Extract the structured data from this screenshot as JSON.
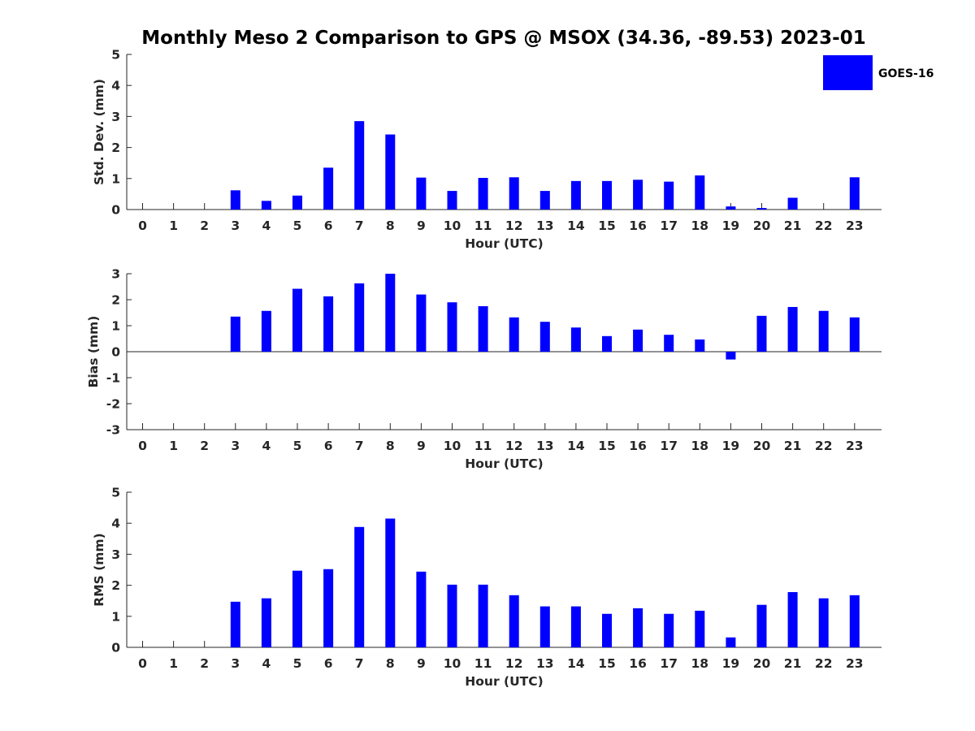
{
  "title": "Monthly Meso 2 Comparison to GPS @ MSOX (34.36, -89.53) 2023-01",
  "legend": {
    "label": "GOES-16",
    "color": "#0000ff"
  },
  "colors": {
    "bar": "#0000ff",
    "axis": "#262626"
  },
  "chart_data": [
    {
      "type": "bar",
      "xlabel": "Hour (UTC)",
      "ylabel": "Std. Dev. (mm)",
      "categories": [
        "0",
        "1",
        "2",
        "3",
        "4",
        "5",
        "6",
        "7",
        "8",
        "9",
        "10",
        "11",
        "12",
        "13",
        "14",
        "15",
        "16",
        "17",
        "18",
        "19",
        "20",
        "21",
        "22",
        "23"
      ],
      "values": [
        0,
        0,
        0,
        0.62,
        0.28,
        0.45,
        1.35,
        2.85,
        2.42,
        1.03,
        0.6,
        1.02,
        1.04,
        0.6,
        0.92,
        0.92,
        0.96,
        0.9,
        1.1,
        0.1,
        0.05,
        0.38,
        0,
        1.04
      ],
      "ylim": [
        0,
        5
      ],
      "yticks": [
        "0",
        "1",
        "2",
        "3",
        "4",
        "5"
      ],
      "legend": "top-right",
      "grid": false
    },
    {
      "type": "bar",
      "xlabel": "Hour (UTC)",
      "ylabel": "Bias (mm)",
      "categories": [
        "0",
        "1",
        "2",
        "3",
        "4",
        "5",
        "6",
        "7",
        "8",
        "9",
        "10",
        "11",
        "12",
        "13",
        "14",
        "15",
        "16",
        "17",
        "18",
        "19",
        "20",
        "21",
        "22",
        "23"
      ],
      "values": [
        0,
        0,
        0,
        1.35,
        1.57,
        2.42,
        2.13,
        2.63,
        3.0,
        2.2,
        1.9,
        1.75,
        1.32,
        1.15,
        0.93,
        0.6,
        0.85,
        0.65,
        0.47,
        -0.3,
        1.38,
        1.72,
        1.57,
        1.32
      ],
      "ylim": [
        -3,
        3
      ],
      "yticks": [
        "-3",
        "-2",
        "-1",
        "0",
        "1",
        "2",
        "3"
      ],
      "grid": false
    },
    {
      "type": "bar",
      "xlabel": "Hour (UTC)",
      "ylabel": "RMS (mm)",
      "categories": [
        "0",
        "1",
        "2",
        "3",
        "4",
        "5",
        "6",
        "7",
        "8",
        "9",
        "10",
        "11",
        "12",
        "13",
        "14",
        "15",
        "16",
        "17",
        "18",
        "19",
        "20",
        "21",
        "22",
        "23"
      ],
      "values": [
        0,
        0,
        0,
        1.47,
        1.58,
        2.47,
        2.52,
        3.88,
        4.15,
        2.44,
        2.02,
        2.02,
        1.68,
        1.32,
        1.32,
        1.08,
        1.26,
        1.08,
        1.18,
        0.32,
        1.37,
        1.78,
        1.58,
        1.68
      ],
      "ylim": [
        0,
        5
      ],
      "yticks": [
        "0",
        "1",
        "2",
        "3",
        "4",
        "5"
      ],
      "grid": false
    }
  ]
}
